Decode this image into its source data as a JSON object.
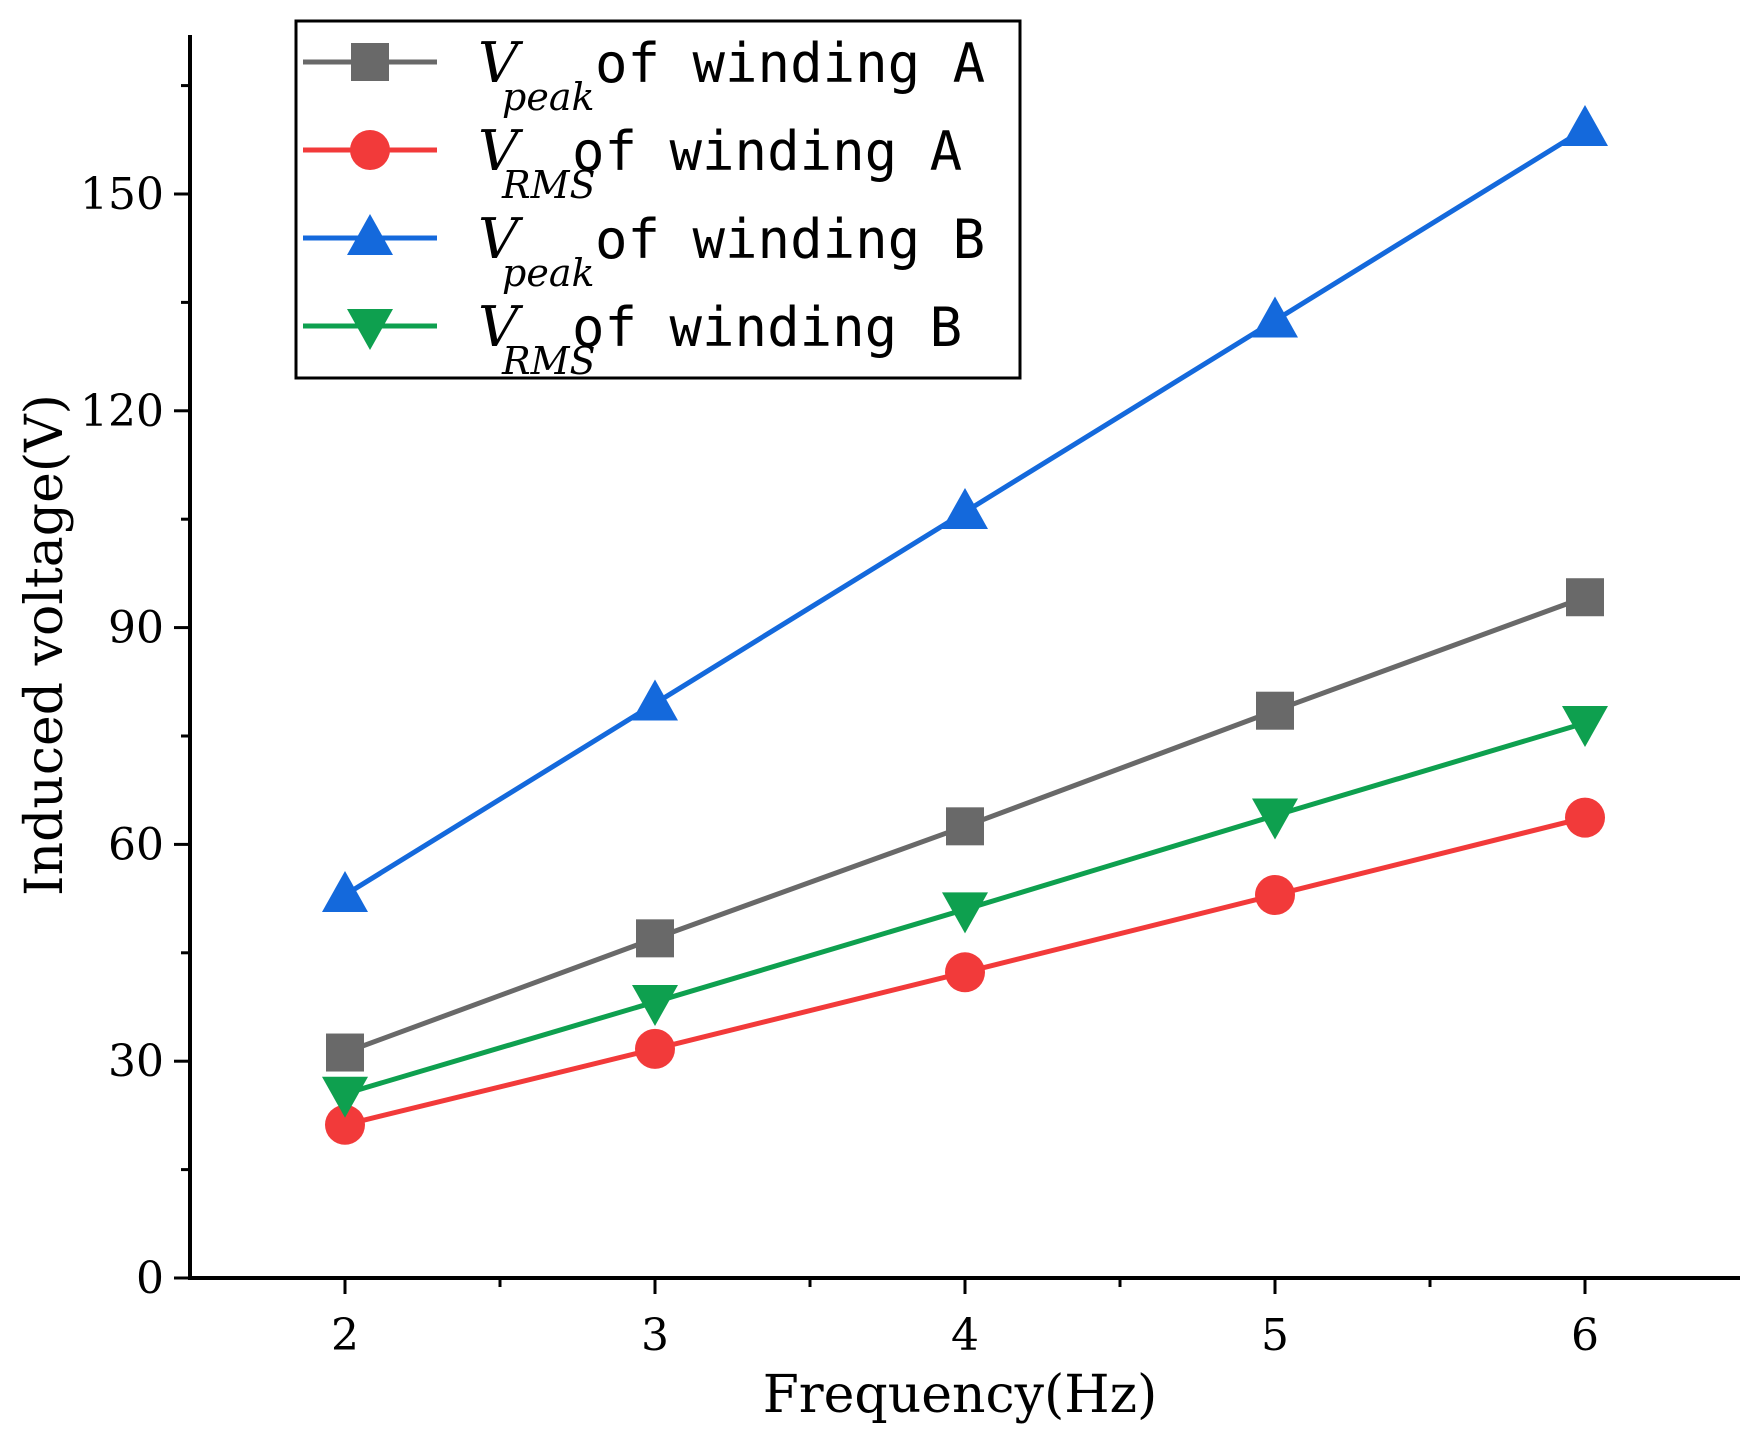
{
  "chart_data": {
    "type": "line",
    "title": "",
    "xlabel": "Frequency(Hz)",
    "ylabel": "Induced voltage(V)",
    "x": [
      2,
      3,
      4,
      5,
      6
    ],
    "xlim": [
      1.5,
      6.5
    ],
    "ylim": [
      0,
      172
    ],
    "xticks": [
      2,
      3,
      4,
      5,
      6
    ],
    "yticks": [
      0,
      30,
      60,
      90,
      120,
      150
    ],
    "grid": false,
    "legend_position": "top-left",
    "series": [
      {
        "name": "Vpeak of winding A",
        "symbol": "V",
        "subscript": "peak",
        "suffix": " of winding A",
        "marker": "square",
        "color": "#696969",
        "values": [
          31.2,
          47.0,
          62.5,
          78.5,
          94.2
        ]
      },
      {
        "name": "VRMS of winding A",
        "symbol": "V",
        "subscript": "RMS",
        "suffix": " of winding A",
        "marker": "circle",
        "color": "#f23a3a",
        "values": [
          21.2,
          31.7,
          42.3,
          53.0,
          63.7
        ]
      },
      {
        "name": "Vpeak of winding B",
        "symbol": "V",
        "subscript": "peak",
        "suffix": " of winding B",
        "marker": "triangle-up",
        "color": "#1469dc",
        "values": [
          53.0,
          79.5,
          106.0,
          132.5,
          159.0
        ]
      },
      {
        "name": "VRMS of winding B",
        "symbol": "V",
        "subscript": "RMS",
        "suffix": " of winding B",
        "marker": "triangle-down",
        "color": "#0ea04f",
        "values": [
          25.5,
          38.2,
          51.0,
          64.0,
          76.8
        ]
      }
    ]
  }
}
